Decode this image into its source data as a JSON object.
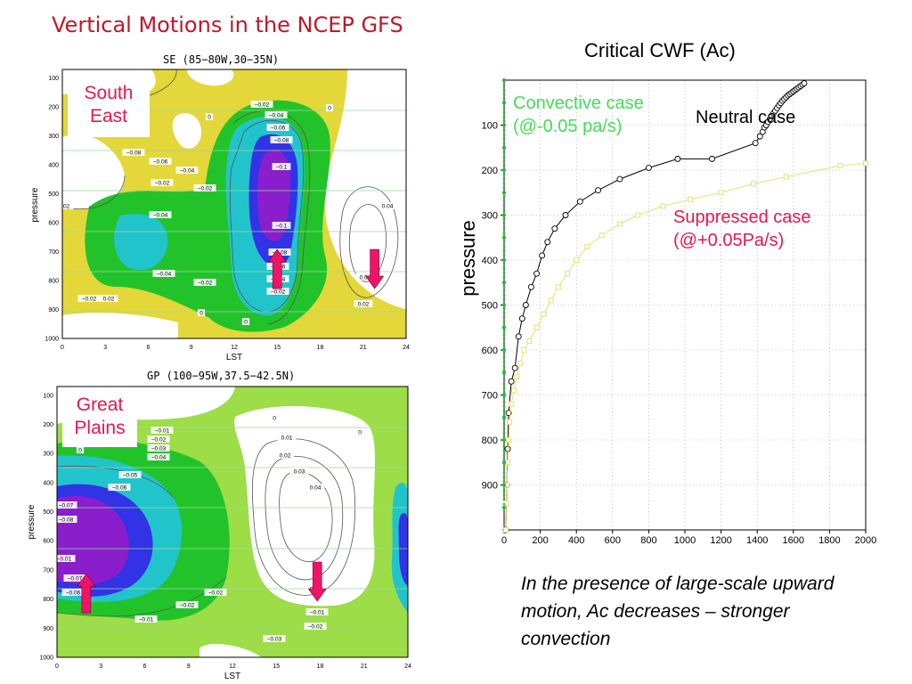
{
  "page": {
    "title": "Vertical Motions in the NCEP GFS"
  },
  "panels": [
    {
      "title": "SE (85−80W,30−35N)",
      "region": "South\nEast",
      "xlabel": "LST",
      "ylabel": "pressure",
      "xticks": [
        "0",
        "3",
        "6",
        "9",
        "12",
        "15",
        "18",
        "21",
        "24"
      ],
      "yticks": [
        "100",
        "200",
        "300",
        "400",
        "500",
        "600",
        "700",
        "800",
        "900",
        "1000"
      ],
      "contour_labels": [
        "0",
        "0",
        "0",
        "0",
        "0",
        "−0.02",
        "−0.04",
        "−0.06",
        "−0.08",
        "−0.1",
        "−0.1",
        "−0.08",
        "−0.06",
        "−0.04",
        "−0.02",
        "−0.02",
        "−0.04",
        "−0.04",
        "−0.02",
        "0.04",
        "0.04",
        "0.02",
        "0.02",
        "−0.02",
        "0",
        "−0.02",
        "−0.04",
        "−0.06",
        "−0.08",
        "−0.02"
      ],
      "arrows": [
        {
          "dir": "up",
          "lst": 15,
          "p": 760
        },
        {
          "dir": "down",
          "lst": 21.8,
          "p": 760
        }
      ]
    },
    {
      "title": "GP (100−95W,37.5−42.5N)",
      "region": "Great\nPlains",
      "xlabel": "LST",
      "ylabel": "pressure",
      "xticks": [
        "0",
        "3",
        "6",
        "9",
        "12",
        "15",
        "18",
        "21",
        "24"
      ],
      "yticks": [
        "100",
        "200",
        "300",
        "400",
        "500",
        "600",
        "700",
        "800",
        "900",
        "1000"
      ],
      "contour_labels": [
        "0",
        "0",
        "0",
        "−0.01",
        "−0.02",
        "−0.03",
        "−0.04",
        "−0.05",
        "−0.06",
        "−0.07",
        "−0.08",
        "−0.07",
        "−0.06",
        "−0.01",
        "0.01",
        "0.02",
        "0.03",
        "0.04",
        "0.01",
        "−0.01",
        "−0.02",
        "−0.02",
        "−0.02",
        "−0.01",
        "−0.03"
      ],
      "arrows": [
        {
          "dir": "up",
          "lst": 2,
          "p": 780
        },
        {
          "dir": "down",
          "lst": 17.8,
          "p": 740
        }
      ]
    }
  ],
  "chart_data": {
    "type": "line",
    "title": "Critical CWF (Ac)",
    "ylabel": "pressure",
    "xlim": [
      0,
      2000
    ],
    "ylim": [
      1000,
      0
    ],
    "xticks": [
      0,
      200,
      400,
      600,
      800,
      1000,
      1200,
      1400,
      1600,
      1800,
      2000
    ],
    "yticks": [
      100,
      200,
      300,
      400,
      500,
      600,
      700,
      800,
      900
    ],
    "series": [
      {
        "name": "Neutral case",
        "color": "#000000",
        "marker": "circle",
        "x": [
          10,
          15,
          20,
          25,
          40,
          60,
          80,
          100,
          120,
          150,
          180,
          210,
          240,
          280,
          340,
          420,
          520,
          640,
          800,
          960,
          1150,
          1390,
          1415,
          1430,
          1440,
          1450,
          1460,
          1470,
          1480,
          1490,
          1500,
          1510,
          1520,
          1530,
          1540,
          1550,
          1560,
          1570,
          1580,
          1590,
          1600,
          1610,
          1620,
          1630,
          1640,
          1650,
          1660
        ],
        "y": [
          1000,
          900,
          820,
          740,
          670,
          640,
          570,
          530,
          500,
          460,
          430,
          390,
          360,
          330,
          300,
          270,
          245,
          220,
          195,
          175,
          175,
          140,
          125,
          115,
          105,
          100,
          93,
          86,
          80,
          74,
          68,
          62,
          56,
          51,
          46,
          42,
          38,
          34,
          31,
          28,
          25,
          22,
          19,
          16,
          13,
          10,
          7
        ]
      },
      {
        "name": "Suppressed case",
        "color": "#e8e074",
        "marker": "square",
        "x": [
          10,
          12,
          15,
          20,
          25,
          30,
          40,
          55,
          70,
          90,
          110,
          140,
          180,
          220,
          260,
          300,
          350,
          400,
          460,
          540,
          640,
          740,
          880,
          1030,
          1200,
          1380,
          1560,
          1860,
          2000
        ],
        "y": [
          1000,
          940,
          900,
          850,
          800,
          760,
          720,
          690,
          660,
          630,
          600,
          580,
          550,
          520,
          490,
          460,
          430,
          400,
          370,
          345,
          320,
          300,
          280,
          265,
          250,
          230,
          215,
          190,
          185
        ]
      },
      {
        "name": "Convective case",
        "color": "#22bb33",
        "marker": "circle",
        "x": [
          0,
          0,
          0,
          0,
          0,
          0,
          0,
          0,
          0,
          0,
          0,
          0,
          0,
          0,
          0,
          0,
          0,
          0,
          0,
          0
        ],
        "y": [
          0,
          50,
          100,
          150,
          200,
          250,
          300,
          350,
          400,
          450,
          500,
          550,
          600,
          650,
          700,
          750,
          800,
          850,
          900,
          950
        ]
      }
    ],
    "annotations": [
      {
        "text": "Convective case\n(@-0.05 pa/s)",
        "color": "#44dd55"
      },
      {
        "text": "Neutral case",
        "color": "#000000"
      },
      {
        "text": "Suppressed case\n(@+0.05Pa/s)",
        "color": "#e8164f"
      }
    ]
  },
  "summary": "In the presence of large-scale upward motion, Ac decreases – stronger convection"
}
